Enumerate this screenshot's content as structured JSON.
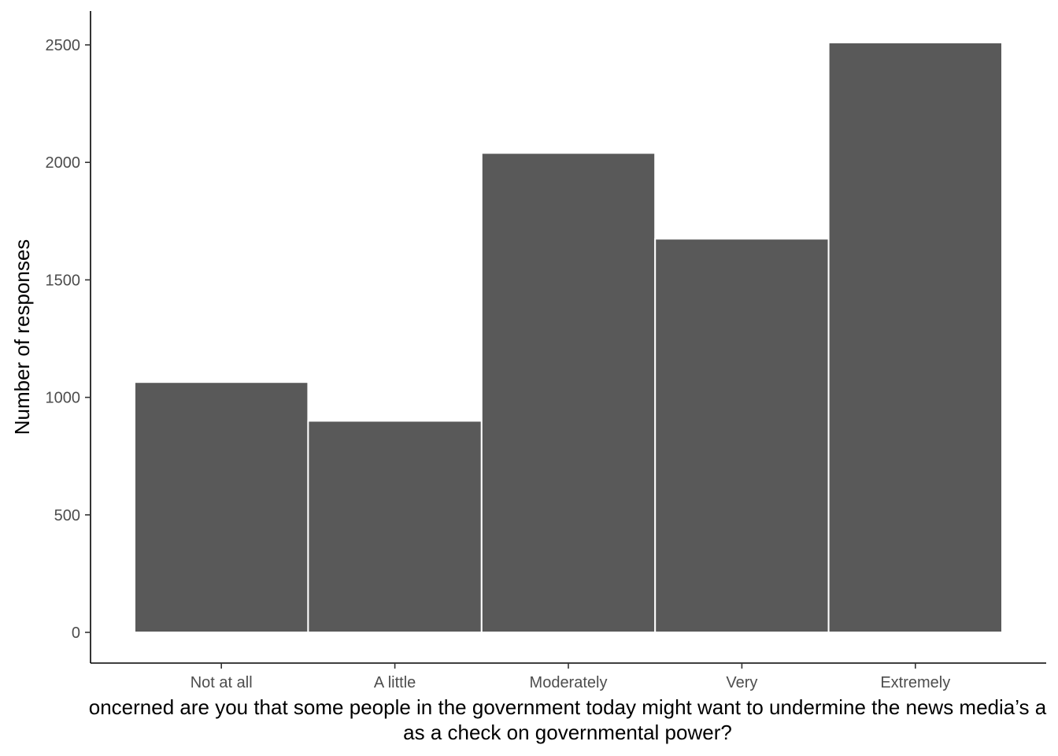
{
  "chart_data": {
    "type": "bar",
    "categories": [
      "Not at all",
      "A little",
      "Moderately",
      "Very",
      "Extremely"
    ],
    "values": [
      1065,
      900,
      2040,
      1675,
      2510
    ],
    "title": "",
    "xlabel_lines": [
      "oncerned are you that some people in the government today might want to undermine the news media’s a",
      "as a check on governmental power?"
    ],
    "ylabel": "Number of responses",
    "ylim": [
      0,
      2500
    ],
    "yticks": [
      0,
      500,
      1000,
      1500,
      2000,
      2500
    ],
    "grid": false,
    "legend": "none",
    "bar_color": "#595959",
    "bar_edge_color": "#ffffff"
  }
}
